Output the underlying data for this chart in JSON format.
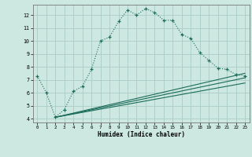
{
  "xlabel": "Humidex (Indice chaleur)",
  "bg_color": "#cde8e0",
  "grid_color": "#aaccc4",
  "line_color": "#1a6b5a",
  "xlim": [
    -0.5,
    23.5
  ],
  "ylim": [
    3.7,
    12.8
  ],
  "yticks": [
    4,
    5,
    6,
    7,
    8,
    9,
    10,
    11,
    12
  ],
  "xticks": [
    0,
    1,
    2,
    3,
    4,
    5,
    6,
    7,
    8,
    9,
    10,
    11,
    12,
    13,
    14,
    15,
    16,
    17,
    18,
    19,
    20,
    21,
    22,
    23
  ],
  "main_line_x": [
    0,
    1,
    2,
    3,
    4,
    5,
    6,
    7,
    8,
    9,
    10,
    11,
    12,
    13,
    14,
    15,
    16,
    17,
    18,
    19,
    20,
    21,
    22,
    23
  ],
  "main_line_y": [
    7.3,
    6.0,
    4.1,
    4.7,
    6.1,
    6.5,
    7.8,
    10.0,
    10.3,
    11.5,
    12.4,
    12.0,
    12.5,
    12.2,
    11.6,
    11.6,
    10.5,
    10.2,
    9.1,
    8.5,
    7.9,
    7.8,
    7.4,
    7.3
  ],
  "lower_line1_x": [
    2,
    23
  ],
  "lower_line1_y": [
    4.1,
    7.5
  ],
  "lower_line2_x": [
    2,
    23
  ],
  "lower_line2_y": [
    4.1,
    7.15
  ],
  "lower_line3_x": [
    2,
    23
  ],
  "lower_line3_y": [
    4.1,
    6.75
  ]
}
